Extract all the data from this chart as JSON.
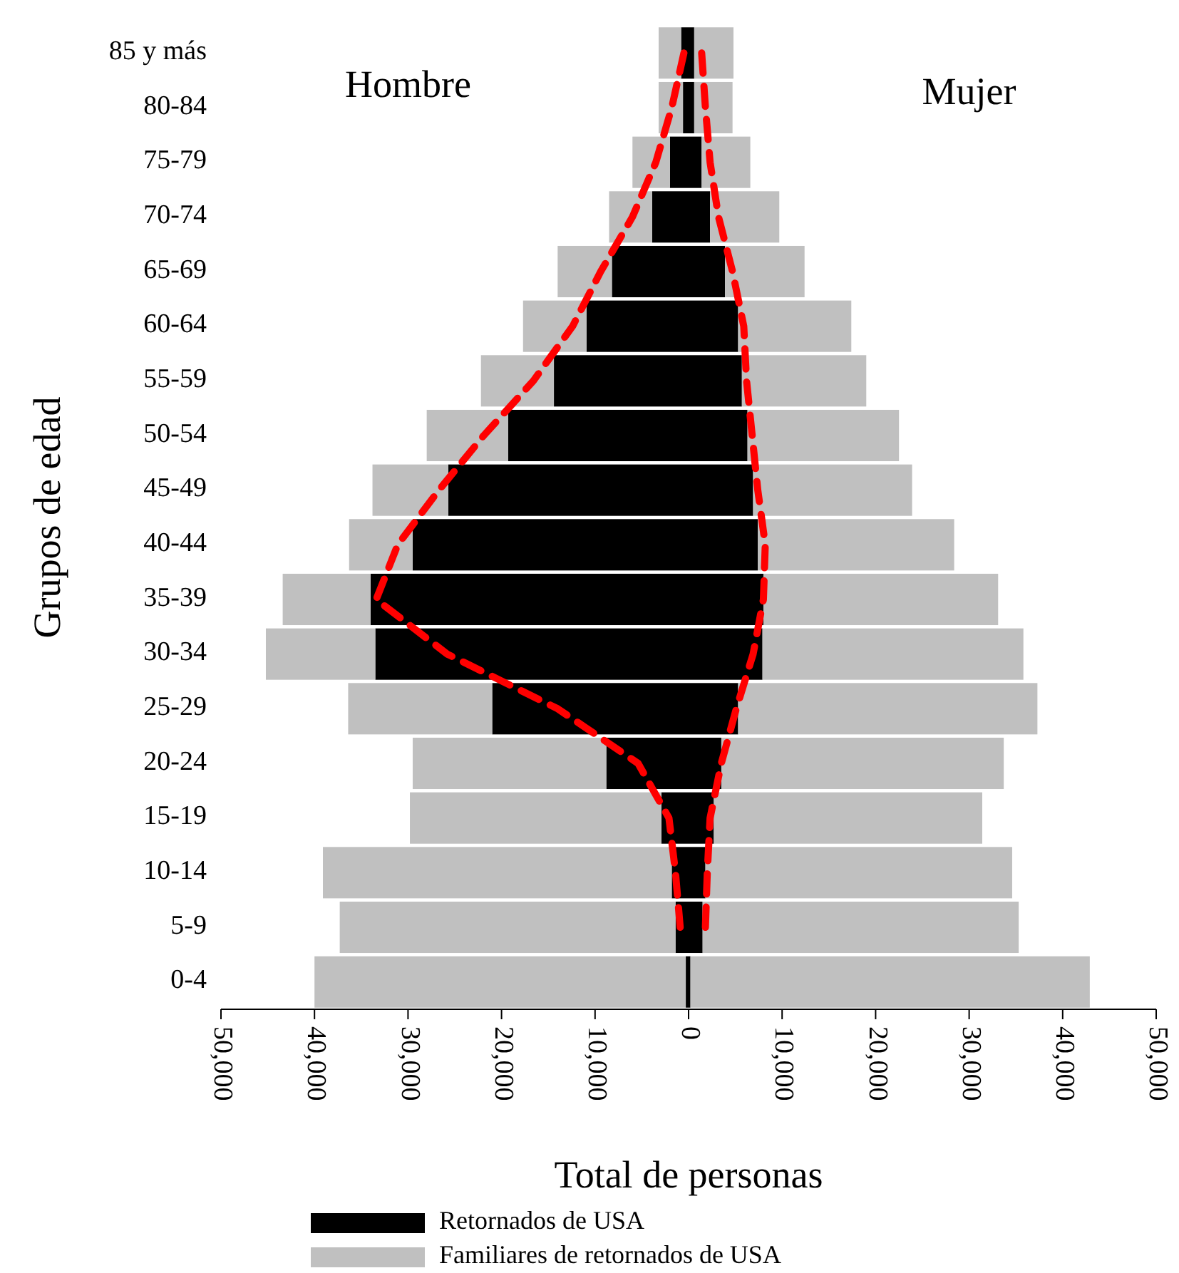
{
  "chart_data": {
    "type": "bar",
    "orientation": "horizontal",
    "stacked": true,
    "xlabel": "Total de personas",
    "ylabel": "Grupos de edad",
    "categories": [
      "85 y más",
      "80-84",
      "75-79",
      "70-74",
      "65-69",
      "60-64",
      "55-59",
      "50-54",
      "45-49",
      "40-44",
      "35-39",
      "30-34",
      "25-29",
      "20-24",
      "15-19",
      "10-14",
      "5-9",
      "0-4"
    ],
    "xlim": [
      -50000,
      50000
    ],
    "xticks": [
      {
        "value": -50000,
        "label": "50,000"
      },
      {
        "value": -40000,
        "label": "40,000"
      },
      {
        "value": -30000,
        "label": "30,000"
      },
      {
        "value": -20000,
        "label": "20,000"
      },
      {
        "value": -10000,
        "label": "10,000"
      },
      0,
      {
        "value": 10000,
        "label": "10,000"
      },
      {
        "value": 20000,
        "label": "20,000"
      },
      {
        "value": 30000,
        "label": "30,000"
      },
      {
        "value": 40000,
        "label": "40,000"
      },
      {
        "value": 50000,
        "label": "50,000"
      }
    ],
    "legend": "bottom",
    "annotations": [
      "Hombre",
      "Mujer"
    ],
    "series": [
      {
        "name": "Retornados de USA",
        "color": "#000000",
        "values": [
          -800,
          -600,
          -2000,
          -3900,
          -8200,
          -10900,
          -14400,
          -19300,
          -25700,
          -29500,
          -34000,
          -33500,
          -21000,
          -8800,
          -2900,
          -1800,
          -1400,
          -300
        ]
      },
      {
        "color": "#000000",
        "values": [
          600,
          600,
          1400,
          2300,
          3900,
          5300,
          5700,
          6300,
          6900,
          7400,
          8000,
          7900,
          5300,
          3500,
          2700,
          1800,
          1500,
          200
        ]
      },
      {
        "name": "Familiares de retornados de USA",
        "color": "#c0c0c0",
        "values": [
          -2400,
          -2600,
          -4000,
          -4600,
          -5800,
          -6800,
          -7800,
          -8700,
          -8100,
          -6800,
          -9400,
          -11700,
          -15400,
          -20700,
          -26900,
          -37300,
          -35900,
          -39700
        ]
      },
      {
        "color": "#c0c0c0",
        "values": [
          4200,
          4100,
          5200,
          7400,
          8500,
          12100,
          13300,
          16200,
          17000,
          21000,
          25100,
          27900,
          32000,
          30200,
          28700,
          32800,
          33800,
          42700
        ]
      },
      {
        "type": "line",
        "color": "#ff0000",
        "line_style": "dashed",
        "values": [
          -500,
          -1800,
          -3500,
          -6000,
          -9400,
          -12400,
          -16600,
          -21900,
          -26700,
          -31100,
          -33400,
          -25800,
          -14000,
          -5400,
          -2100,
          -1400,
          -900,
          null
        ]
      },
      {
        "type": "line",
        "color": "#ff0000",
        "line_style": "dashed",
        "values": [
          1400,
          1800,
          2300,
          3200,
          4700,
          5900,
          6200,
          6800,
          7400,
          8200,
          8000,
          6900,
          5100,
          3500,
          2300,
          2000,
          1800,
          null
        ]
      }
    ]
  }
}
